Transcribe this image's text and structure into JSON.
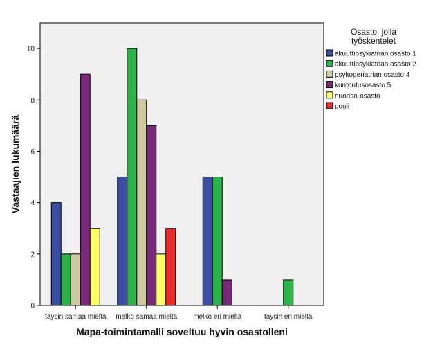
{
  "chart_data": {
    "type": "bar",
    "title": "",
    "xlabel": "Mapa-toimintamalli soveltuu hyvin osastolleni",
    "ylabel": "Vastaajien lukumäärä",
    "ylim": [
      0,
      11
    ],
    "yticks": [
      0,
      2,
      4,
      6,
      8,
      10
    ],
    "categories": [
      "täysin samaa mieltä",
      "melko samaa mieltä",
      "melko eri mieltä",
      "täysin eri mieltä"
    ],
    "legend_title_lines": [
      "Osasto, jolla",
      "työskentelet"
    ],
    "legend_position": "right",
    "grid": false,
    "series": [
      {
        "name": "akuuttipsykiatrian osasto 1",
        "color": "#3b4ea3",
        "values": [
          4,
          5,
          5,
          null
        ]
      },
      {
        "name": "akuuttipsykiatrian osasto 2",
        "color": "#2db34a",
        "values": [
          2,
          10,
          5,
          1
        ]
      },
      {
        "name": "psykogeriatrian osasto 4",
        "color": "#cdc9a0",
        "values": [
          2,
          8,
          null,
          null
        ]
      },
      {
        "name": "kuntoutusosasto 5",
        "color": "#772a78",
        "values": [
          9,
          7,
          1,
          null
        ]
      },
      {
        "name": "nuoriso-osasto",
        "color": "#ffff66",
        "values": [
          3,
          2,
          null,
          null
        ]
      },
      {
        "name": "pooli",
        "color": "#ee2a2a",
        "values": [
          null,
          3,
          null,
          null
        ]
      }
    ]
  }
}
